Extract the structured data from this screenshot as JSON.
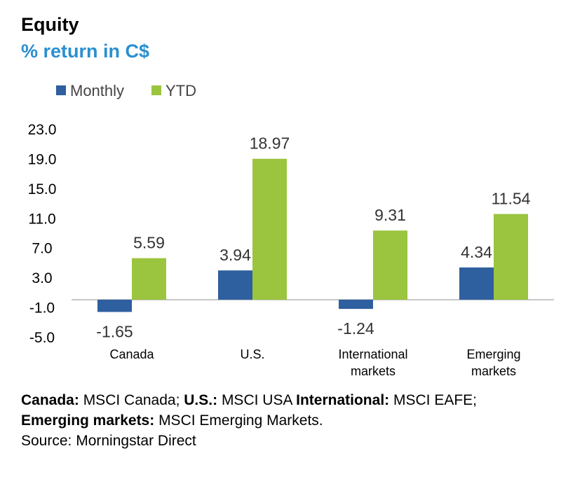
{
  "header": {
    "title": "Equity",
    "subtitle": "% return in C$"
  },
  "colors": {
    "subtitle": "#2a8fd0",
    "monthly": "#2e5f9e",
    "ytd": "#9bc43f",
    "axis": "#c8c8c8"
  },
  "chart_data": {
    "type": "bar",
    "categories": [
      [
        "Canada"
      ],
      [
        "U.S."
      ],
      [
        "International",
        "markets"
      ],
      [
        "Emerging",
        "markets"
      ]
    ],
    "series": [
      {
        "name": "Monthly",
        "values": [
          -1.65,
          3.94,
          -1.24,
          4.34
        ],
        "labels": [
          "-1.65",
          "3.94",
          "-1.24",
          "4.34"
        ]
      },
      {
        "name": "YTD",
        "values": [
          5.59,
          18.97,
          9.31,
          11.54
        ],
        "labels": [
          "5.59",
          "18.97",
          "9.31",
          "11.54"
        ]
      }
    ],
    "yticks": [
      "23.0",
      "19.0",
      "15.0",
      "11.0",
      "7.0",
      "3.0",
      "-1.0",
      "-5.0"
    ],
    "ylim": [
      -5.0,
      23.0
    ],
    "legend_position": "top-left",
    "grid": false
  },
  "footnote": {
    "parts": [
      {
        "bold": "Canada:",
        "text": " MSCI Canada; "
      },
      {
        "bold": "U.S.:",
        "text": " MSCI USA "
      },
      {
        "bold": "International:",
        "text": " MSCI EAFE; "
      },
      {
        "bold": "Emerging markets:",
        "text": " MSCI Emerging Markets."
      }
    ],
    "source": "Source: Morningstar Direct"
  }
}
